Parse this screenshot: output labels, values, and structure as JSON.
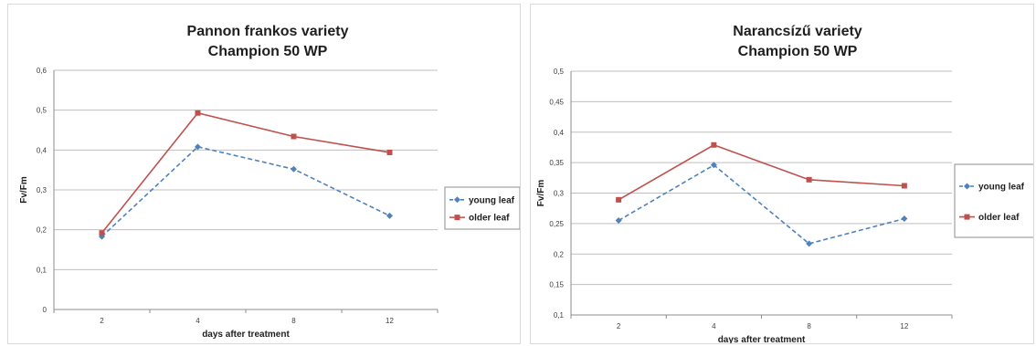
{
  "chart_data": [
    {
      "type": "line",
      "title": [
        "Pannon frankos variety",
        "Champion 50 WP"
      ],
      "xlabel": "days after treatment",
      "ylabel": "Fv/Fm",
      "categories": [
        "2",
        "4",
        "8",
        "12"
      ],
      "ylim": [
        0,
        0.6
      ],
      "yticks": [
        "0",
        "0,1",
        "0,2",
        "0,3",
        "0,4",
        "0,5",
        "0,6"
      ],
      "ytick_values": [
        0,
        0.1,
        0.2,
        0.3,
        0.4,
        0.5,
        0.6
      ],
      "grid": true,
      "legend": "right",
      "series": [
        {
          "name": "young leaf",
          "values": [
            0.183,
            0.408,
            0.352,
            0.235
          ],
          "color": "#4f81bd",
          "dash": "dashed",
          "marker": "diamond"
        },
        {
          "name": "older leaf",
          "values": [
            0.192,
            0.493,
            0.434,
            0.394
          ],
          "color": "#c0504d",
          "dash": "solid",
          "marker": "square"
        }
      ]
    },
    {
      "type": "line",
      "title": [
        "Narancsízű variety",
        "Champion 50 WP"
      ],
      "xlabel": "days after treatment",
      "ylabel": "Fv/Fm",
      "categories": [
        "2",
        "4",
        "8",
        "12"
      ],
      "ylim": [
        0.1,
        0.5
      ],
      "yticks": [
        "0,1",
        "0,15",
        "0,2",
        "0,25",
        "0,3",
        "0,35",
        "0,4",
        "0,45",
        "0,5"
      ],
      "ytick_values": [
        0.1,
        0.15,
        0.2,
        0.25,
        0.3,
        0.35,
        0.4,
        0.45,
        0.5
      ],
      "grid": true,
      "legend": "right",
      "series": [
        {
          "name": "young leaf",
          "values": [
            0.255,
            0.346,
            0.217,
            0.258
          ],
          "color": "#4f81bd",
          "dash": "dashed",
          "marker": "diamond"
        },
        {
          "name": "older leaf",
          "values": [
            0.289,
            0.379,
            0.322,
            0.312
          ],
          "color": "#c0504d",
          "dash": "solid",
          "marker": "square"
        }
      ]
    }
  ]
}
